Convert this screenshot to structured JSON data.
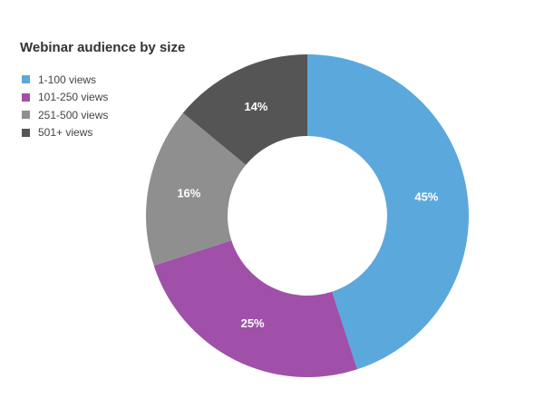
{
  "chart_data": {
    "type": "pie",
    "title": "Webinar audience by size",
    "donut": true,
    "legend_position": "top-left",
    "categories": [
      "1-100 views",
      "101-250 views",
      "251-500 views",
      "501+ views"
    ],
    "values": [
      45,
      25,
      16,
      14
    ],
    "value_labels": [
      "45%",
      "25%",
      "16%",
      "14%"
    ],
    "colors": [
      "#5ba8dc",
      "#a050a8",
      "#8f8f8f",
      "#555555"
    ]
  }
}
